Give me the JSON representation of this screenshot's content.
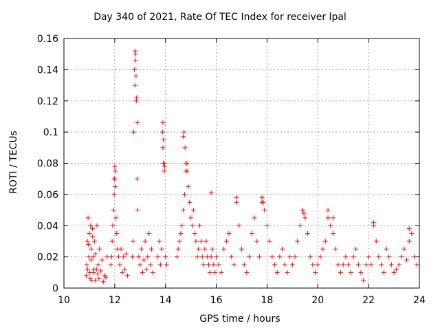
{
  "chart_data": {
    "type": "scatter",
    "title": "Day 340 of 2021, Rate Of TEC Index for receiver lpal",
    "xlabel": "GPS time / hours",
    "ylabel": "ROTI / TECUs",
    "xlim": [
      10,
      24
    ],
    "ylim": [
      0,
      0.16
    ],
    "xticks": [
      "10",
      "12",
      "14",
      "16",
      "18",
      "20",
      "22",
      "24"
    ],
    "yticks": [
      "0",
      "0.02",
      "0.04",
      "0.06",
      "0.08",
      "0.1",
      "0.12",
      "0.14",
      "0.16"
    ],
    "grid": true,
    "marker": "+",
    "color": "#ff0000",
    "series": [
      {
        "x": [
          10.9,
          10.92,
          10.95,
          10.98,
          11.0,
          11.02,
          11.05,
          11.08,
          11.1,
          11.12,
          11.15,
          11.18,
          11.2,
          11.25,
          11.3,
          11.35,
          11.4,
          11.5,
          11.6,
          11.7,
          10.88,
          10.93,
          10.97,
          11.03,
          11.07,
          11.13,
          11.17,
          11.23,
          11.28,
          11.33,
          11.38,
          11.45,
          11.55,
          11.65,
          11.85,
          11.88,
          11.9,
          11.92,
          11.95,
          11.98,
          12.0,
          12.02,
          12.05,
          12.08,
          12.1,
          12.15,
          12.2,
          12.25,
          12.3,
          12.35,
          12.4,
          12.45,
          12.5,
          12.7,
          12.72,
          12.75,
          12.78,
          12.8,
          12.82,
          12.85,
          12.88,
          12.9,
          12.95,
          13.0,
          13.05,
          13.1,
          13.15,
          13.2,
          13.25,
          13.3,
          13.35,
          13.4,
          13.45,
          13.5,
          13.7,
          13.75,
          13.8,
          13.85,
          13.88,
          13.9,
          13.92,
          13.95,
          14.0,
          14.05,
          14.45,
          14.5,
          14.55,
          14.6,
          14.65,
          14.7,
          14.75,
          14.8,
          14.85,
          14.9,
          14.95,
          15.0,
          15.05,
          15.1,
          15.15,
          15.2,
          15.25,
          15.3,
          15.35,
          15.4,
          15.45,
          15.5,
          15.55,
          15.6,
          15.65,
          15.7,
          15.75,
          15.8,
          15.85,
          15.9,
          15.95,
          16.0,
          16.1,
          16.2,
          16.3,
          16.4,
          16.5,
          16.6,
          16.7,
          16.8,
          16.9,
          17.0,
          17.1,
          17.2,
          17.3,
          17.4,
          17.5,
          17.6,
          17.7,
          17.8,
          17.9,
          18.0,
          18.1,
          18.2,
          18.3,
          18.4,
          18.5,
          18.6,
          18.7,
          18.8,
          18.9,
          19.0,
          19.1,
          19.2,
          19.3,
          19.4,
          19.5,
          19.6,
          19.7,
          19.8,
          19.9,
          20.0,
          20.1,
          20.2,
          20.3,
          20.4,
          20.5,
          20.6,
          20.7,
          20.8,
          20.9,
          21.0,
          21.1,
          21.2,
          21.3,
          21.4,
          21.5,
          21.6,
          21.7,
          21.8,
          21.9,
          22.0,
          22.1,
          22.2,
          22.3,
          22.4,
          22.5,
          22.6,
          22.7,
          22.8,
          22.9,
          23.0,
          23.1,
          23.2,
          23.3,
          23.4,
          23.5,
          23.6,
          23.7,
          23.8,
          23.9,
          12.8,
          12.82,
          12.84,
          12.86,
          12.9,
          13.9,
          13.92,
          13.95,
          13.97,
          14.73,
          14.77,
          14.8,
          14.85,
          14.7,
          12.0,
          12.02,
          11.98,
          15.8,
          16.8,
          17.8,
          17.85,
          19.4,
          19.45,
          20.4,
          20.6,
          22.2,
          23.6
        ],
        "y": [
          0.015,
          0.03,
          0.045,
          0.02,
          0.035,
          0.01,
          0.04,
          0.025,
          0.005,
          0.038,
          0.02,
          0.012,
          0.03,
          0.022,
          0.04,
          0.015,
          0.025,
          0.018,
          0.008,
          0.02,
          0.008,
          0.012,
          0.028,
          0.006,
          0.018,
          0.033,
          0.01,
          0.005,
          0.012,
          0.009,
          0.006,
          0.011,
          0.004,
          0.007,
          0.015,
          0.02,
          0.03,
          0.04,
          0.05,
          0.06,
          0.07,
          0.075,
          0.045,
          0.035,
          0.025,
          0.02,
          0.015,
          0.025,
          0.01,
          0.02,
          0.012,
          0.022,
          0.008,
          0.02,
          0.03,
          0.1,
          0.14,
          0.13,
          0.15,
          0.12,
          0.07,
          0.05,
          0.02,
          0.015,
          0.025,
          0.01,
          0.018,
          0.03,
          0.012,
          0.02,
          0.035,
          0.015,
          0.025,
          0.01,
          0.02,
          0.03,
          0.015,
          0.025,
          0.1,
          0.09,
          0.08,
          0.075,
          0.02,
          0.015,
          0.02,
          0.025,
          0.03,
          0.035,
          0.04,
          0.05,
          0.06,
          0.075,
          0.08,
          0.065,
          0.055,
          0.045,
          0.04,
          0.05,
          0.035,
          0.03,
          0.02,
          0.025,
          0.04,
          0.03,
          0.02,
          0.015,
          0.025,
          0.03,
          0.02,
          0.015,
          0.01,
          0.02,
          0.025,
          0.015,
          0.01,
          0.02,
          0.015,
          0.01,
          0.025,
          0.03,
          0.035,
          0.02,
          0.015,
          0.055,
          0.04,
          0.025,
          0.015,
          0.01,
          0.02,
          0.035,
          0.045,
          0.03,
          0.02,
          0.055,
          0.05,
          0.04,
          0.03,
          0.02,
          0.015,
          0.01,
          0.02,
          0.025,
          0.015,
          0.01,
          0.02,
          0.015,
          0.02,
          0.03,
          0.04,
          0.05,
          0.045,
          0.035,
          0.02,
          0.015,
          0.01,
          0.015,
          0.02,
          0.025,
          0.03,
          0.045,
          0.04,
          0.035,
          0.025,
          0.015,
          0.01,
          0.015,
          0.02,
          0.015,
          0.01,
          0.02,
          0.025,
          0.015,
          0.01,
          0.005,
          0.015,
          0.02,
          0.015,
          0.04,
          0.03,
          0.02,
          0.015,
          0.01,
          0.025,
          0.02,
          0.015,
          0.01,
          0.012,
          0.015,
          0.02,
          0.025,
          0.018,
          0.03,
          0.035,
          0.02,
          0.015,
          0.152,
          0.146,
          0.136,
          0.122,
          0.106,
          0.106,
          0.095,
          0.08,
          0.078,
          0.1,
          0.09,
          0.08,
          0.075,
          0.097,
          0.078,
          0.065,
          0.07,
          0.061,
          0.058,
          0.058,
          0.055,
          0.05,
          0.048,
          0.05,
          0.045,
          0.042,
          0.038
        ]
      }
    ]
  }
}
